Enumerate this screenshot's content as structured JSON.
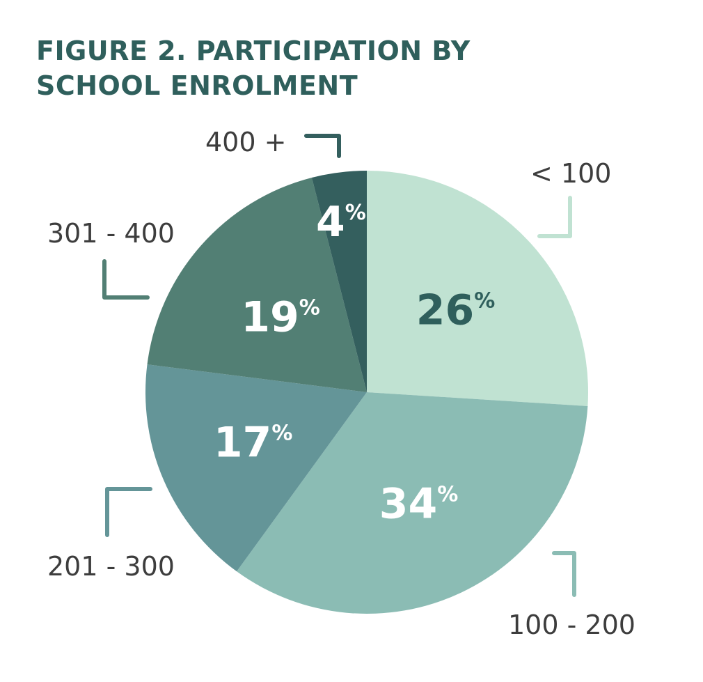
{
  "title_lines": [
    "FIGURE 2. PARTICIPATION BY",
    "SCHOOL ENROLMENT"
  ],
  "chart_data": {
    "type": "pie",
    "title": "FIGURE 2. PARTICIPATION BY SCHOOL ENROLMENT",
    "categories": [
      "< 100",
      "100 - 200",
      "201 - 300",
      "301 - 400",
      "400 +"
    ],
    "values": [
      26,
      34,
      17,
      19,
      4
    ],
    "value_labels": [
      "26",
      "34",
      "17",
      "19",
      "4"
    ],
    "unit": "%",
    "colors": [
      "#c0e2d2",
      "#8bbcb4",
      "#649598",
      "#527f74",
      "#345f5e"
    ],
    "label_colors": [
      "#2f5f5c",
      "#ffffff",
      "#ffffff",
      "#ffffff",
      "#ffffff"
    ]
  }
}
